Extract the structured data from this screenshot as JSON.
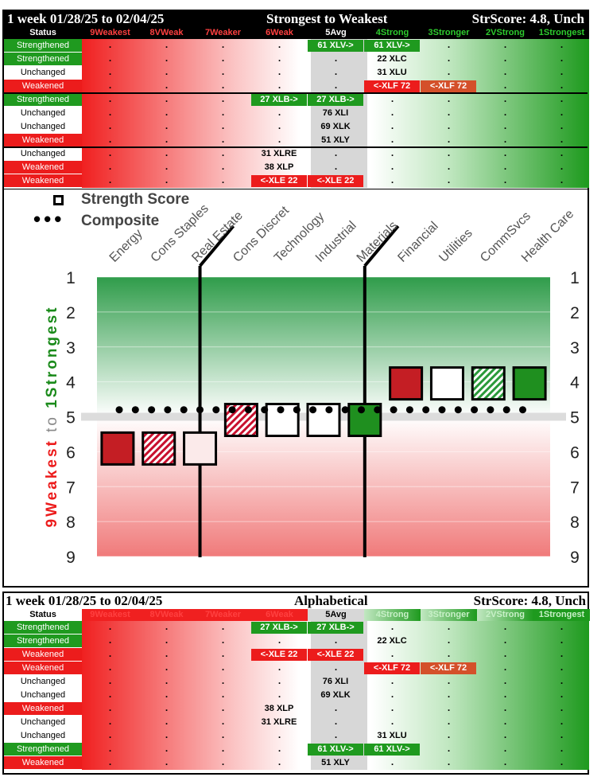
{
  "colors": {
    "strong": "#1f9a1f",
    "weak": "#ec1c1c",
    "avg": "#d7d7d7",
    "line": "#e0e0e0"
  },
  "top": {
    "title_left": "1 week 01/28/25 to 02/04/25",
    "title_mid": "Strongest to Weakest",
    "title_right": "StrScore: 4.8, Unch"
  },
  "bottom": {
    "title_left": "1 week 01/28/25 to 02/04/25",
    "title_mid": "Alphabetical",
    "title_right": "StrScore: 4.8, Unch"
  },
  "header": [
    "Status",
    "9Weakest",
    "8VWeak",
    "7Weaker",
    "6Weak",
    "5Avg",
    "4Strong",
    "3Stronger",
    "2VStrong",
    "1Strongest"
  ],
  "top_rows": [
    {
      "status": "Strengthened",
      "tags": [
        {
          "col": 5,
          "text": "61 XLV->",
          "style": "green"
        },
        {
          "col": 6,
          "text": "61 XLV->",
          "style": "green"
        }
      ]
    },
    {
      "status": "Strengthened",
      "tags": [
        {
          "col": 6,
          "text": "22 XLC",
          "style": "plain"
        }
      ]
    },
    {
      "status": "Unchanged",
      "tags": [
        {
          "col": 6,
          "text": "31 XLU",
          "style": "plain"
        }
      ]
    },
    {
      "status": "Weakened",
      "tags": [
        {
          "col": 6,
          "text": "<-XLF 72",
          "style": "red"
        },
        {
          "col": 7,
          "text": "<-XLF 72",
          "style": "orange"
        }
      ]
    },
    {
      "status": "Strengthened",
      "tags": [
        {
          "col": 4,
          "text": "27 XLB->",
          "style": "green"
        },
        {
          "col": 5,
          "text": "27 XLB->",
          "style": "green"
        }
      ]
    },
    {
      "status": "Unchanged",
      "tags": [
        {
          "col": 5,
          "text": "76 XLI",
          "style": "plain"
        }
      ]
    },
    {
      "status": "Unchanged",
      "tags": [
        {
          "col": 5,
          "text": "69 XLK",
          "style": "plain"
        }
      ]
    },
    {
      "status": "Weakened",
      "tags": [
        {
          "col": 5,
          "text": "51 XLY",
          "style": "plain"
        }
      ]
    },
    {
      "status": "Unchanged",
      "tags": [
        {
          "col": 4,
          "text": "31 XLRE",
          "style": "plain"
        }
      ]
    },
    {
      "status": "Weakened",
      "tags": [
        {
          "col": 4,
          "text": "38 XLP",
          "style": "plain"
        }
      ]
    },
    {
      "status": "Weakened",
      "tags": [
        {
          "col": 4,
          "text": "<-XLE 22",
          "style": "red"
        },
        {
          "col": 5,
          "text": "<-XLE 22",
          "style": "red"
        }
      ]
    }
  ],
  "bottom_rows": [
    {
      "status": "Strengthened",
      "tags": [
        {
          "col": 4,
          "text": "27 XLB->",
          "style": "green"
        },
        {
          "col": 5,
          "text": "27 XLB->",
          "style": "green"
        }
      ]
    },
    {
      "status": "Strengthened",
      "tags": [
        {
          "col": 6,
          "text": "22 XLC",
          "style": "plain"
        }
      ]
    },
    {
      "status": "Weakened",
      "tags": [
        {
          "col": 4,
          "text": "<-XLE 22",
          "style": "red"
        },
        {
          "col": 5,
          "text": "<-XLE 22",
          "style": "red"
        }
      ]
    },
    {
      "status": "Weakened",
      "tags": [
        {
          "col": 6,
          "text": "<-XLF 72",
          "style": "red"
        },
        {
          "col": 7,
          "text": "<-XLF 72",
          "style": "orange"
        }
      ]
    },
    {
      "status": "Unchanged",
      "tags": [
        {
          "col": 5,
          "text": "76 XLI",
          "style": "plain"
        }
      ]
    },
    {
      "status": "Unchanged",
      "tags": [
        {
          "col": 5,
          "text": "69 XLK",
          "style": "plain"
        }
      ]
    },
    {
      "status": "Weakened",
      "tags": [
        {
          "col": 4,
          "text": "38 XLP",
          "style": "plain"
        }
      ]
    },
    {
      "status": "Unchanged",
      "tags": [
        {
          "col": 4,
          "text": "31 XLRE",
          "style": "plain"
        }
      ]
    },
    {
      "status": "Unchanged",
      "tags": [
        {
          "col": 6,
          "text": "31 XLU",
          "style": "plain"
        }
      ]
    },
    {
      "status": "Strengthened",
      "tags": [
        {
          "col": 5,
          "text": "61 XLV->",
          "style": "green"
        },
        {
          "col": 6,
          "text": "61 XLV->",
          "style": "green"
        }
      ]
    },
    {
      "status": "Weakened",
      "tags": [
        {
          "col": 5,
          "text": "51 XLY",
          "style": "plain"
        }
      ]
    }
  ],
  "chart_data": {
    "type": "scatter",
    "legend": [
      "Strength Score",
      "Composite"
    ],
    "categories": [
      "Energy",
      "Cons Staples",
      "Real Estate",
      "Cons Discret",
      "Technology",
      "Industrial",
      "Materials",
      "Financial",
      "Utilities",
      "CommSvcs",
      "Health Care"
    ],
    "strength_score": [
      6,
      6,
      6,
      5,
      5,
      5,
      5,
      4,
      4,
      4,
      4
    ],
    "marker_style": [
      "solid-red",
      "hatched-red",
      "light-pink",
      "hatched-red",
      "white",
      "white",
      "solid-green",
      "solid-red",
      "white",
      "hatched-green",
      "solid-green"
    ],
    "composite": 4.8,
    "y_ticks": [
      "1",
      "2",
      "3",
      "4",
      "5",
      "6",
      "7",
      "8",
      "9"
    ],
    "ylim": [
      1,
      9
    ],
    "y_axis_title_strong": "1Strongest",
    "y_axis_title_to": "to",
    "y_axis_title_weak": "9Weakest"
  }
}
